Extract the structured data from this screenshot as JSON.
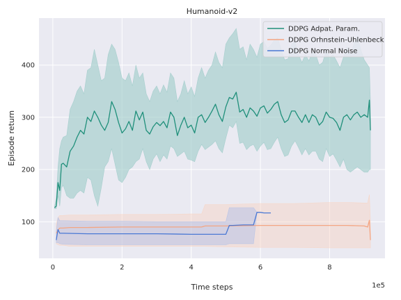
{
  "chart_data": {
    "type": "line",
    "title": "Humanoid-v2",
    "xlabel": "Time steps",
    "ylabel": "Episode return",
    "x_offset_label": "1e5",
    "xlim": [
      -0.4,
      9.6
    ],
    "ylim": [
      30,
      490
    ],
    "x_ticks": [
      0,
      2,
      4,
      6,
      8
    ],
    "x_tick_labels": [
      "0",
      "2",
      "4",
      "6",
      "8"
    ],
    "y_ticks": [
      100,
      200,
      300,
      400
    ],
    "y_tick_labels": [
      "100",
      "200",
      "300",
      "400"
    ],
    "grid": true,
    "legend_position": "top-right",
    "series": [
      {
        "name": "DDPG Adpat. Param.",
        "color": "#1f8f7a",
        "band_color": "#9ccbc8",
        "x": [
          0.05,
          0.1,
          0.15,
          0.2,
          0.25,
          0.3,
          0.4,
          0.5,
          0.6,
          0.7,
          0.8,
          0.9,
          1.0,
          1.1,
          1.2,
          1.3,
          1.4,
          1.5,
          1.6,
          1.7,
          1.8,
          1.9,
          2.0,
          2.1,
          2.2,
          2.3,
          2.4,
          2.5,
          2.6,
          2.7,
          2.8,
          2.9,
          3.0,
          3.1,
          3.2,
          3.3,
          3.4,
          3.5,
          3.6,
          3.7,
          3.8,
          3.9,
          4.0,
          4.1,
          4.2,
          4.3,
          4.4,
          4.5,
          4.6,
          4.7,
          4.8,
          4.9,
          5.0,
          5.1,
          5.2,
          5.3,
          5.4,
          5.5,
          5.6,
          5.7,
          5.8,
          5.9,
          6.0,
          6.1,
          6.2,
          6.3,
          6.4,
          6.5,
          6.6,
          6.7,
          6.8,
          6.9,
          7.0,
          7.1,
          7.2,
          7.3,
          7.4,
          7.5,
          7.6,
          7.7,
          7.8,
          7.9,
          8.0,
          8.1,
          8.2,
          8.3,
          8.4,
          8.5,
          8.6,
          8.7,
          8.8,
          8.9,
          9.0,
          9.1,
          9.15,
          9.18
        ],
        "values": [
          127,
          130,
          175,
          160,
          210,
          212,
          205,
          235,
          245,
          262,
          275,
          268,
          300,
          292,
          312,
          300,
          285,
          275,
          290,
          330,
          315,
          290,
          270,
          278,
          292,
          275,
          312,
          295,
          310,
          275,
          268,
          282,
          290,
          284,
          292,
          280,
          310,
          300,
          265,
          285,
          300,
          280,
          285,
          270,
          300,
          305,
          290,
          300,
          312,
          325,
          305,
          292,
          320,
          338,
          335,
          348,
          310,
          315,
          300,
          318,
          312,
          302,
          318,
          322,
          308,
          315,
          325,
          330,
          305,
          290,
          295,
          312,
          312,
          300,
          290,
          305,
          290,
          305,
          300,
          285,
          292,
          310,
          300,
          298,
          290,
          275,
          300,
          305,
          295,
          305,
          310,
          300,
          305,
          300,
          333,
          275
        ],
        "lower": [
          125,
          125,
          150,
          130,
          165,
          170,
          150,
          145,
          145,
          155,
          160,
          155,
          185,
          180,
          150,
          130,
          165,
          205,
          215,
          240,
          210,
          180,
          175,
          185,
          200,
          205,
          215,
          220,
          240,
          215,
          200,
          220,
          230,
          215,
          228,
          220,
          245,
          240,
          225,
          230,
          235,
          220,
          218,
          215,
          235,
          248,
          238,
          243,
          248,
          255,
          240,
          232,
          260,
          285,
          280,
          292,
          250,
          252,
          238,
          245,
          248,
          235,
          245,
          252,
          238,
          240,
          252,
          262,
          240,
          225,
          228,
          245,
          255,
          242,
          228,
          240,
          228,
          235,
          235,
          220,
          215,
          240,
          225,
          230,
          218,
          205,
          220,
          200,
          195,
          200,
          205,
          200,
          195,
          195,
          200,
          200
        ],
        "upper": [
          130,
          145,
          205,
          240,
          255,
          262,
          265,
          315,
          330,
          350,
          360,
          345,
          390,
          395,
          430,
          400,
          370,
          375,
          420,
          440,
          430,
          405,
          375,
          370,
          385,
          360,
          400,
          375,
          385,
          345,
          330,
          350,
          360,
          345,
          362,
          348,
          385,
          375,
          330,
          345,
          370,
          345,
          358,
          340,
          375,
          395,
          375,
          390,
          400,
          425,
          405,
          395,
          440,
          452,
          460,
          470,
          430,
          435,
          410,
          440,
          430,
          415,
          440,
          445,
          432,
          438,
          448,
          452,
          430,
          410,
          412,
          440,
          445,
          420,
          405,
          420,
          408,
          425,
          420,
          400,
          405,
          428,
          415,
          420,
          408,
          395,
          415,
          435,
          420,
          440,
          455,
          430,
          410,
          400,
          395,
          330
        ]
      },
      {
        "name": "DDPG Orhnstein-Uhlenbeck",
        "color": "#f4a582",
        "band_color": "#f9d3c0",
        "x": [
          0.1,
          0.15,
          0.2,
          0.3,
          0.5,
          1.0,
          2.0,
          3.0,
          4.0,
          4.3,
          4.4,
          5.0,
          6.0,
          7.0,
          8.0,
          8.5,
          9.0,
          9.1,
          9.15,
          9.18
        ],
        "values": [
          78,
          84,
          88,
          88,
          89,
          89,
          90,
          90,
          90,
          90,
          92,
          92,
          93,
          93,
          93,
          93,
          92,
          90,
          103,
          65
        ],
        "lower": [
          58,
          56,
          55,
          55,
          53,
          53,
          53,
          53,
          53,
          53,
          53,
          52,
          51,
          51,
          50,
          50,
          50,
          50,
          50,
          50
        ],
        "upper": [
          96,
          108,
          112,
          112,
          113,
          113,
          114,
          114,
          115,
          115,
          133,
          133,
          135,
          135,
          137,
          137,
          136,
          136,
          152,
          100
        ]
      },
      {
        "name": "DDPG Normal Noise",
        "color": "#4a78d4",
        "band_color": "#aebfe8",
        "x": [
          0.1,
          0.15,
          0.2,
          0.3,
          1.0,
          2.0,
          3.0,
          4.0,
          4.5,
          5.0,
          5.1,
          5.2,
          5.5,
          5.8,
          5.9,
          6.0,
          6.1,
          6.3
        ],
        "values": [
          65,
          85,
          78,
          78,
          77,
          77,
          77,
          76,
          76,
          76,
          93,
          93,
          94,
          94,
          118,
          118,
          117,
          117
        ],
        "lower": [
          60,
          60,
          58,
          57,
          56,
          56,
          56,
          56,
          56,
          56,
          58,
          58,
          58,
          58,
          118,
          118,
          117,
          117
        ],
        "upper": [
          82,
          108,
          102,
          102,
          101,
          101,
          100,
          100,
          100,
          100,
          127,
          127,
          127,
          127,
          118,
          118,
          117,
          117
        ]
      }
    ]
  }
}
